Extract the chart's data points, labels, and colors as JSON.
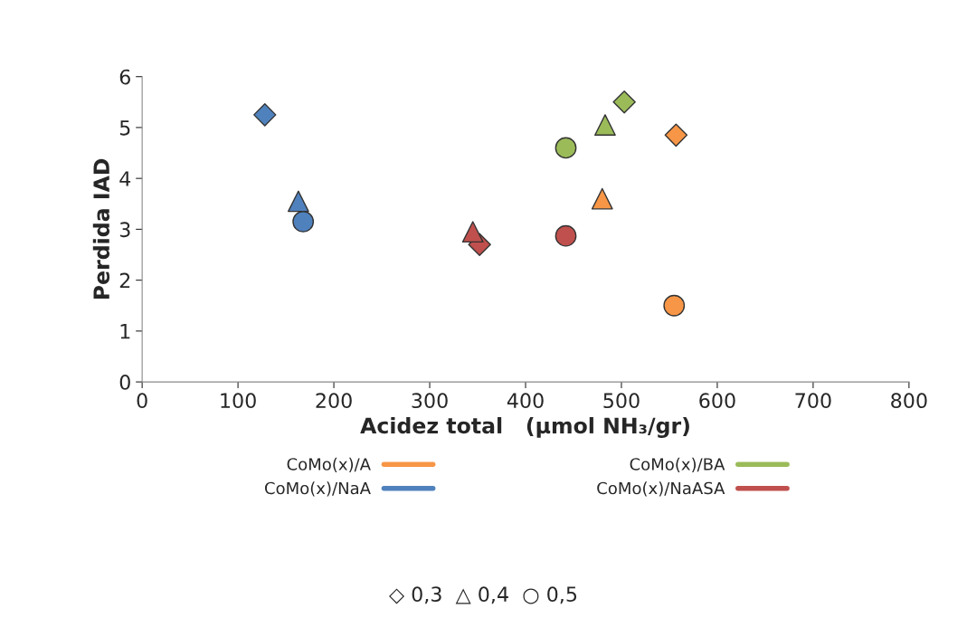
{
  "chart_data": {
    "type": "scatter",
    "xlabel": "Acidez total   (µmol NH₃/gr)",
    "ylabel": "Perdida IAD",
    "xlim": [
      0,
      800
    ],
    "xticks": [
      0,
      100,
      200,
      300,
      400,
      500,
      600,
      700,
      800
    ],
    "ylim": [
      0,
      6
    ],
    "yticks": [
      0,
      1,
      2,
      3,
      4,
      5,
      6
    ],
    "grid": false,
    "legend": "bottom",
    "annotations": [
      "◇ 0,3  △ 0,4  ○ 0,5"
    ],
    "series": [
      {
        "name": "CoMo(x)/A",
        "color": "#f79646",
        "marker": [
          "diamond",
          "triangle",
          "circle"
        ],
        "x": [
          557,
          480,
          555
        ],
        "values": [
          4.85,
          3.6,
          1.5
        ]
      },
      {
        "name": "CoMo(x)/NaA",
        "color": "#4f81bd",
        "marker": [
          "diamond",
          "triangle",
          "circle"
        ],
        "x": [
          128,
          163,
          168
        ],
        "values": [
          5.25,
          3.55,
          3.15
        ]
      },
      {
        "name": "CoMo(x)/BA",
        "color": "#9bbb59",
        "marker": [
          "diamond",
          "triangle",
          "circle"
        ],
        "x": [
          503,
          483,
          442
        ],
        "values": [
          5.5,
          5.05,
          4.6
        ]
      },
      {
        "name": "CoMo(x)/NaASA",
        "color": "#c0504d",
        "marker": [
          "diamond",
          "triangle",
          "circle"
        ],
        "x": [
          352,
          345,
          442
        ],
        "values": [
          2.7,
          2.95,
          2.87
        ]
      }
    ]
  }
}
